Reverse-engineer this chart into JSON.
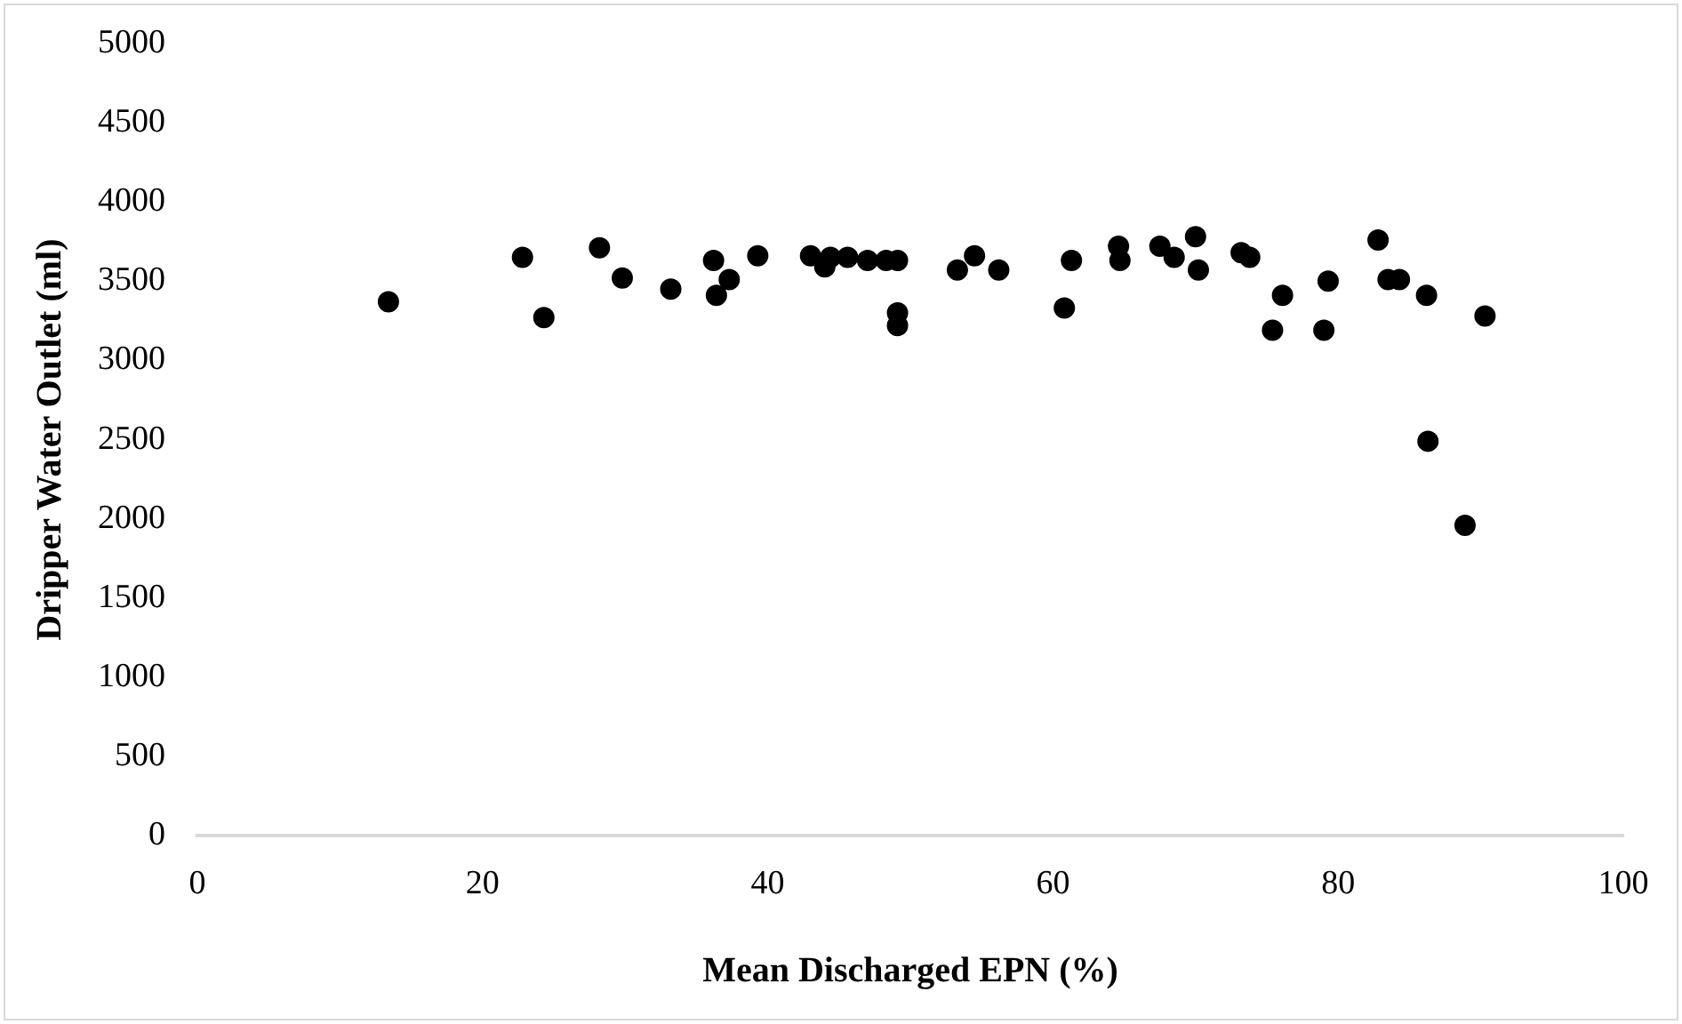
{
  "chart_data": {
    "type": "scatter",
    "xlabel": "Mean Discharged EPN (%)",
    "ylabel": "Dripper Water Outlet (ml)",
    "x": [
      13.4,
      22.8,
      24.3,
      28.2,
      29.8,
      33.2,
      36.2,
      36.4,
      37.3,
      39.3,
      43,
      44,
      44.4,
      45.6,
      47,
      48.3,
      49.1,
      49.1,
      49.1,
      53.3,
      54.5,
      56.2,
      61.3,
      60.8,
      64.6,
      64.7,
      67.5,
      68.5,
      70,
      70.2,
      73.2,
      73.8,
      76.1,
      75.4,
      79.3,
      79,
      82.8,
      83.5,
      84.3,
      86.2,
      90.3,
      86.3,
      88.9
    ],
    "values": [
      3370,
      3650,
      3270,
      3710,
      3520,
      3450,
      3630,
      3410,
      3510,
      3660,
      3660,
      3590,
      3650,
      3650,
      3630,
      3630,
      3630,
      3300,
      3220,
      3570,
      3660,
      3570,
      3630,
      3330,
      3720,
      3630,
      3720,
      3650,
      3780,
      3570,
      3680,
      3650,
      3410,
      3190,
      3500,
      3190,
      3760,
      3510,
      3510,
      3410,
      3280,
      2490,
      1960
    ],
    "color": "#000000",
    "marker": "circle",
    "xlim": [
      0,
      100
    ],
    "xticks": [
      0,
      20,
      40,
      60,
      80,
      100
    ],
    "ylim": [
      0,
      5000
    ],
    "yticks": [
      0,
      500,
      1000,
      1500,
      2000,
      2500,
      3000,
      3500,
      4000,
      4500,
      5000
    ],
    "grid": false,
    "legend": false
  }
}
